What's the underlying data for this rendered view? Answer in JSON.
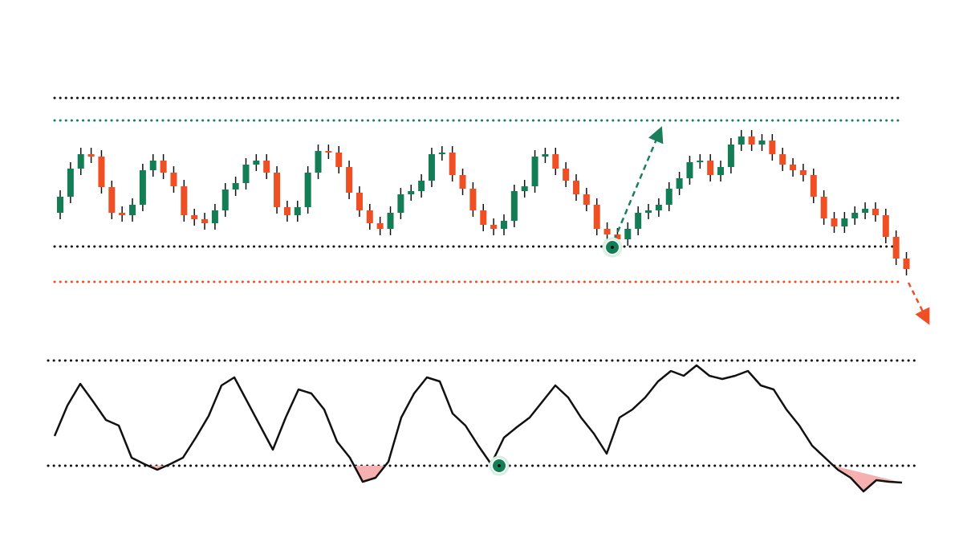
{
  "chart_data": [
    {
      "type": "candlestick",
      "up_color": "#137d56",
      "down_color": "#f04e23",
      "open": [
        135,
        155,
        190,
        208,
        205,
        167,
        135,
        132,
        145,
        188,
        200,
        185,
        168,
        132,
        127,
        122,
        138,
        164,
        172,
        195,
        200,
        185,
        142,
        132,
        142,
        185,
        212,
        210,
        192,
        160,
        138,
        122,
        115,
        135,
        158,
        162,
        175,
        208,
        210,
        182,
        165,
        138,
        120,
        115,
        125,
        162,
        168,
        205,
        208,
        190,
        175,
        158,
        145,
        115,
        108,
        102,
        115,
        135,
        138,
        145,
        165,
        178,
        198,
        200,
        182,
        192,
        220,
        230,
        220,
        225,
        208,
        195,
        188,
        182,
        155,
        128,
        118,
        128,
        135,
        140,
        132,
        105,
        78
      ],
      "high": [
        163,
        198,
        216,
        216,
        213,
        175,
        143,
        153,
        196,
        208,
        208,
        193,
        176,
        140,
        135,
        146,
        172,
        180,
        203,
        208,
        208,
        193,
        150,
        150,
        193,
        220,
        220,
        218,
        200,
        168,
        146,
        130,
        143,
        166,
        170,
        183,
        216,
        218,
        218,
        190,
        173,
        146,
        128,
        133,
        170,
        176,
        213,
        216,
        216,
        198,
        183,
        166,
        153,
        123,
        116,
        123,
        143,
        146,
        153,
        173,
        186,
        206,
        208,
        208,
        200,
        228,
        238,
        238,
        233,
        233,
        216,
        203,
        196,
        190,
        163,
        136,
        136,
        143,
        148,
        148,
        140,
        113,
        86
      ],
      "low": [
        127,
        147,
        182,
        197,
        159,
        127,
        124,
        124,
        137,
        180,
        177,
        160,
        124,
        119,
        114,
        114,
        130,
        156,
        164,
        187,
        177,
        134,
        124,
        124,
        134,
        177,
        202,
        184,
        152,
        130,
        114,
        107,
        107,
        127,
        150,
        154,
        167,
        200,
        174,
        157,
        130,
        112,
        107,
        107,
        117,
        154,
        160,
        197,
        182,
        167,
        150,
        137,
        107,
        100,
        94,
        94,
        107,
        127,
        130,
        137,
        157,
        170,
        190,
        174,
        174,
        184,
        212,
        212,
        212,
        200,
        187,
        180,
        174,
        147,
        120,
        110,
        110,
        120,
        127,
        124,
        97,
        70,
        57
      ],
      "close": [
        155,
        190,
        208,
        205,
        167,
        135,
        132,
        145,
        188,
        200,
        185,
        168,
        132,
        127,
        122,
        138,
        164,
        172,
        195,
        200,
        185,
        142,
        132,
        142,
        185,
        212,
        210,
        192,
        160,
        138,
        122,
        115,
        135,
        158,
        162,
        175,
        208,
        210,
        182,
        165,
        138,
        120,
        115,
        125,
        162,
        168,
        205,
        208,
        190,
        175,
        158,
        145,
        115,
        108,
        102,
        115,
        135,
        138,
        145,
        165,
        178,
        198,
        200,
        182,
        192,
        220,
        230,
        220,
        225,
        208,
        195,
        188,
        182,
        155,
        128,
        118,
        128,
        135,
        140,
        132,
        105,
        78,
        65
      ],
      "ylim": [
        0,
        300
      ],
      "levels": [
        {
          "value": 278,
          "color": "#111111"
        },
        {
          "value": 250,
          "color": "#1a7f5a"
        },
        {
          "value": 93,
          "color": "#111111"
        },
        {
          "value": 49,
          "color": "#f04e23"
        }
      ]
    },
    {
      "type": "line",
      "color": "#111111",
      "fill_below_color": "#f6b0b0",
      "values": [
        77,
        115,
        142,
        120,
        97,
        90,
        50,
        42,
        35,
        42,
        50,
        75,
        102,
        140,
        150,
        120,
        90,
        60,
        100,
        135,
        130,
        110,
        70,
        50,
        20,
        25,
        45,
        100,
        130,
        150,
        145,
        105,
        90,
        65,
        42,
        75,
        88,
        100,
        120,
        140,
        125,
        100,
        80,
        55,
        100,
        110,
        125,
        145,
        158,
        152,
        165,
        152,
        148,
        152,
        158,
        140,
        135,
        110,
        90,
        65,
        50,
        35,
        25,
        8,
        22,
        20,
        19
      ],
      "ylim": [
        0,
        180
      ],
      "levels": [
        {
          "value": 171,
          "color": "#111111"
        },
        {
          "value": 40,
          "color": "#111111"
        }
      ]
    }
  ]
}
